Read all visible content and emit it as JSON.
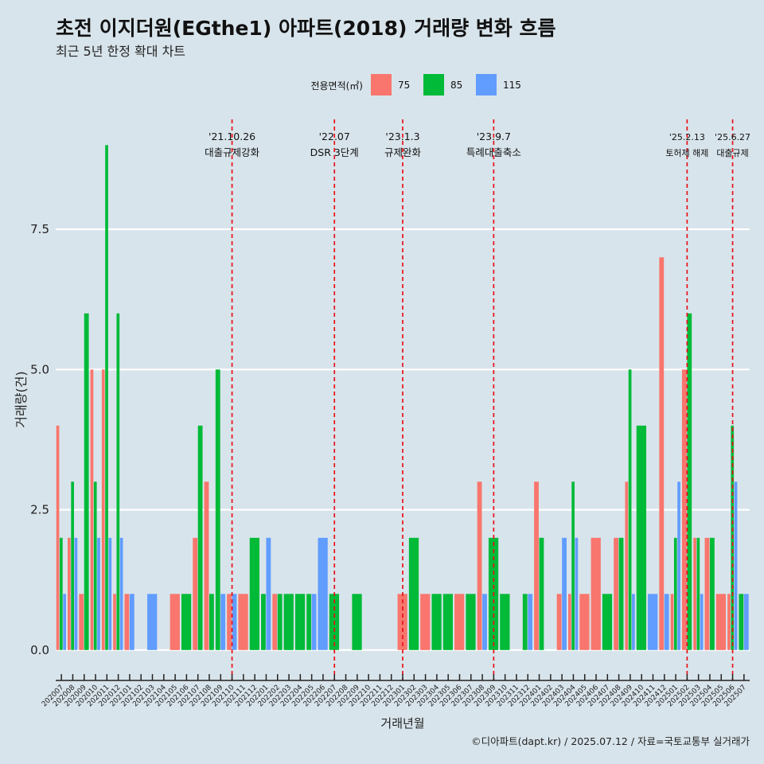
{
  "chart_data": {
    "type": "bar",
    "title": "초전 이지더원(EGthe1) 아파트(2018) 거래량 변화 흐름",
    "subtitle": "최근 5년 한정 확대 차트",
    "xlabel": "거래년월",
    "ylabel": "거래량(건)",
    "ylim": [
      -0.4,
      9.6
    ],
    "yticks": [
      0.0,
      2.5,
      5.0,
      7.5
    ],
    "grid": true,
    "legend_title": "전용면적(㎡)",
    "legend_position": "top",
    "caption": "©디아파트(dapt.kr) / 2025.07.12 / 자료=국토교통부 실거래가",
    "categories": [
      "202007",
      "202008",
      "202009",
      "202010",
      "202011",
      "202012",
      "202101",
      "202102",
      "202103",
      "202104",
      "202105",
      "202106",
      "202107",
      "202108",
      "202109",
      "202110",
      "202111",
      "202112",
      "202201",
      "202202",
      "202203",
      "202204",
      "202205",
      "202206",
      "202207",
      "202208",
      "202209",
      "202210",
      "202211",
      "202212",
      "202301",
      "202302",
      "202303",
      "202304",
      "202305",
      "202306",
      "202307",
      "202308",
      "202309",
      "202310",
      "202311",
      "202312",
      "202401",
      "202402",
      "202403",
      "202404",
      "202405",
      "202406",
      "202407",
      "202408",
      "202409",
      "202410",
      "202411",
      "202412",
      "202501",
      "202502",
      "202503",
      "202504",
      "202505",
      "202506",
      "202507"
    ],
    "series": [
      {
        "name": "75",
        "color": "#f8766d",
        "values": [
          4,
          2,
          1,
          5,
          5,
          1,
          1,
          0,
          0,
          0,
          1,
          0,
          2,
          3,
          0,
          1,
          1,
          0,
          0,
          1,
          0,
          0,
          0,
          0,
          0,
          0,
          0,
          0,
          0,
          0,
          1,
          0,
          1,
          0,
          0,
          1,
          0,
          3,
          0,
          0,
          0,
          0,
          3,
          0,
          1,
          1,
          1,
          2,
          0,
          2,
          3,
          0,
          0,
          7,
          1,
          5,
          2,
          2,
          1,
          1,
          0
        ]
      },
      {
        "name": "85",
        "color": "#00ba38",
        "values": [
          2,
          3,
          6,
          3,
          9,
          6,
          0,
          0,
          0,
          0,
          0,
          1,
          4,
          1,
          5,
          0,
          0,
          2,
          1,
          1,
          1,
          1,
          1,
          0,
          1,
          0,
          1,
          0,
          0,
          0,
          0,
          2,
          0,
          1,
          1,
          0,
          1,
          0,
          2,
          1,
          0,
          1,
          2,
          0,
          0,
          3,
          0,
          0,
          1,
          2,
          5,
          4,
          0,
          0,
          2,
          6,
          2,
          2,
          0,
          4,
          1
        ]
      },
      {
        "name": "115",
        "color": "#619cff",
        "values": [
          1,
          2,
          0,
          2,
          2,
          2,
          1,
          0,
          1,
          0,
          0,
          0,
          0,
          0,
          1,
          1,
          0,
          0,
          2,
          0,
          0,
          0,
          1,
          2,
          0,
          0,
          0,
          0,
          0,
          0,
          0,
          0,
          0,
          0,
          0,
          0,
          0,
          1,
          0,
          0,
          0,
          1,
          0,
          0,
          2,
          2,
          0,
          0,
          0,
          0,
          1,
          0,
          1,
          1,
          3,
          0,
          1,
          0,
          0,
          3,
          1
        ]
      }
    ],
    "events": [
      {
        "category": "202110",
        "date": "'21.10.26",
        "label": "대출규제강화"
      },
      {
        "category": "202207",
        "date": "'22.07",
        "label": "DSR 3단계"
      },
      {
        "category": "202301",
        "date": "'23.1.3",
        "label": "규제완화"
      },
      {
        "category": "202309",
        "date": "'23.9.7",
        "label": "특례대출축소"
      },
      {
        "category": "202502",
        "date": "'25.2.13",
        "label": "토허제 해제"
      },
      {
        "category": "202506",
        "date": "'25.6.27",
        "label": "대출규제"
      }
    ]
  }
}
